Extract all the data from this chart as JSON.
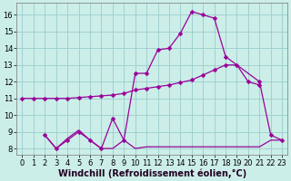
{
  "bg_color": "#cceee8",
  "grid_color": "#99cccc",
  "line_color": "#990099",
  "xlabel": "Windchill (Refroidissement éolien,°C)",
  "xlabel_fontsize": 7,
  "xlim_min": -0.5,
  "xlim_max": 23.5,
  "ylim_min": 7.6,
  "ylim_max": 16.7,
  "xticks": [
    0,
    1,
    2,
    3,
    4,
    5,
    6,
    7,
    8,
    9,
    10,
    11,
    12,
    13,
    14,
    15,
    16,
    17,
    18,
    19,
    20,
    21,
    22,
    23
  ],
  "yticks": [
    8,
    9,
    10,
    11,
    12,
    13,
    14,
    15,
    16
  ],
  "line1_x": [
    0,
    1,
    2,
    3,
    4,
    5,
    6,
    7,
    8,
    9,
    10,
    11,
    12,
    13,
    14,
    15,
    16,
    17,
    18,
    19,
    20,
    21
  ],
  "line1_y": [
    11.0,
    11.0,
    11.0,
    11.0,
    11.0,
    11.05,
    11.1,
    11.15,
    11.2,
    11.3,
    11.5,
    11.6,
    11.7,
    11.8,
    11.95,
    12.1,
    12.4,
    12.7,
    13.0,
    13.0,
    12.0,
    11.8
  ],
  "line2_x": [
    2,
    3,
    4,
    5,
    6,
    7,
    8,
    9,
    10,
    11,
    12,
    13,
    14,
    15,
    16,
    17,
    18,
    21,
    22,
    23
  ],
  "line2_y": [
    8.8,
    8.0,
    8.5,
    9.0,
    8.5,
    8.0,
    9.8,
    8.5,
    12.5,
    12.5,
    13.9,
    14.0,
    14.9,
    16.2,
    16.0,
    15.8,
    13.5,
    12.0,
    8.8,
    8.5
  ],
  "line3_x": [
    2,
    3,
    4,
    5,
    6,
    7,
    8,
    9,
    10,
    11,
    12,
    13,
    14,
    15,
    16,
    17,
    18,
    19,
    20,
    21,
    22,
    23
  ],
  "line3_y": [
    8.8,
    8.0,
    8.6,
    9.1,
    8.5,
    8.0,
    8.0,
    8.5,
    8.0,
    8.1,
    8.1,
    8.1,
    8.1,
    8.1,
    8.1,
    8.1,
    8.1,
    8.1,
    8.1,
    8.1,
    8.5,
    8.5
  ],
  "tick_fontsize": 6,
  "markersize": 2.5,
  "linewidth": 0.9
}
